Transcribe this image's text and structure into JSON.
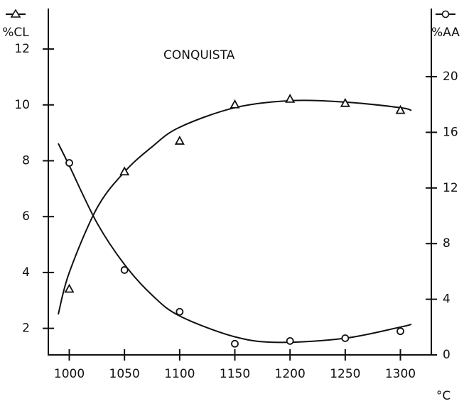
{
  "chart_data": {
    "type": "line",
    "annotation": "CONQUISTA",
    "x_label": "°C",
    "y_label": "%CL",
    "y2_label": "%AA",
    "xlim": [
      981,
      1328
    ],
    "xticks": [
      1000,
      1050,
      1100,
      1150,
      1200,
      1250,
      1300
    ],
    "ylim": [
      1.05,
      13.45
    ],
    "yticks": [
      2,
      4,
      6,
      8,
      10,
      12
    ],
    "y2lim": [
      0,
      24.9
    ],
    "y2ticks": [
      0,
      4,
      8,
      12,
      16,
      20
    ],
    "series": [
      {
        "name": "%CL",
        "marker": "triangle",
        "color": "#111",
        "x": [
          1000,
          1050,
          1100,
          1150,
          1200,
          1250,
          1300
        ],
        "values": [
          3.4,
          7.6,
          8.7,
          10.0,
          10.2,
          10.05,
          9.8
        ],
        "fit_x": [
          990,
          1000,
          1025,
          1050,
          1075,
          1100,
          1150,
          1200,
          1250,
          1300,
          1310
        ],
        "fit_values": [
          2.5,
          4.0,
          6.3,
          7.6,
          8.5,
          9.2,
          9.9,
          10.15,
          10.1,
          9.9,
          9.8
        ]
      },
      {
        "name": "%AA",
        "marker": "circle",
        "color": "#111",
        "axis": "y2",
        "x": [
          1000,
          1050,
          1100,
          1150,
          1200,
          1250,
          1300
        ],
        "values": [
          13.8,
          6.1,
          3.1,
          0.8,
          1.0,
          1.2,
          1.7
        ],
        "fit_x": [
          990,
          1000,
          1025,
          1050,
          1075,
          1100,
          1150,
          1190,
          1250,
          1300,
          1310
        ],
        "fit_values": [
          15.2,
          13.6,
          9.5,
          6.5,
          4.3,
          2.8,
          1.3,
          0.9,
          1.2,
          2.0,
          2.2
        ]
      }
    ]
  }
}
